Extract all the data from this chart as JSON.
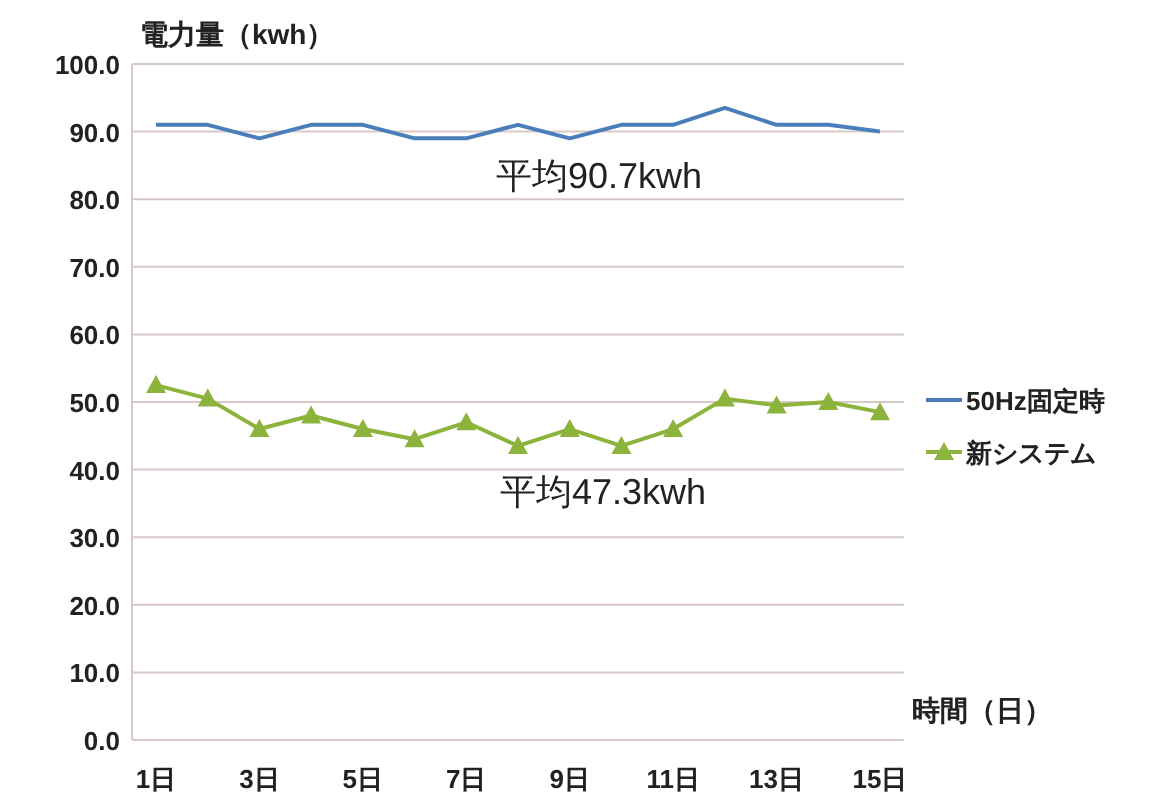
{
  "chart_data": {
    "type": "line",
    "ylabel": "電力量（kwh）",
    "xlabel": "時間（日）",
    "categories": [
      "1日",
      null,
      "3日",
      null,
      "5日",
      null,
      "7日",
      null,
      "9日",
      null,
      "11日",
      null,
      "13日",
      null,
      "15日"
    ],
    "series": [
      {
        "name": "50Hz固定時",
        "color": "#4a7ebb",
        "marker": "none",
        "values": [
          91,
          91,
          89,
          91,
          91,
          89,
          89,
          91,
          89,
          91,
          91,
          93.5,
          91,
          91,
          90
        ]
      },
      {
        "name": "新システム",
        "color": "#8cb33c",
        "marker": "triangle",
        "values": [
          52.5,
          50.5,
          46,
          48,
          46,
          44.5,
          47,
          43.5,
          46,
          43.5,
          46,
          50.5,
          49.5,
          50,
          48.5
        ]
      }
    ],
    "ylim": [
      0,
      100
    ],
    "yticks": [
      {
        "value": 0,
        "label": "0.0"
      },
      {
        "value": 10,
        "label": "10.0"
      },
      {
        "value": 20,
        "label": "20.0"
      },
      {
        "value": 30,
        "label": "30.0"
      },
      {
        "value": 40,
        "label": "40.0"
      },
      {
        "value": 50,
        "label": "50.0"
      },
      {
        "value": 60,
        "label": "60.0"
      },
      {
        "value": 70,
        "label": "70.0"
      },
      {
        "value": 80,
        "label": "80.0"
      },
      {
        "value": 90,
        "label": "90.0"
      },
      {
        "value": 100,
        "label": "100.0"
      }
    ],
    "grid": "y",
    "legend": "right",
    "annotations": [
      "平均90.7kwh",
      "平均47.3kwh"
    ]
  }
}
